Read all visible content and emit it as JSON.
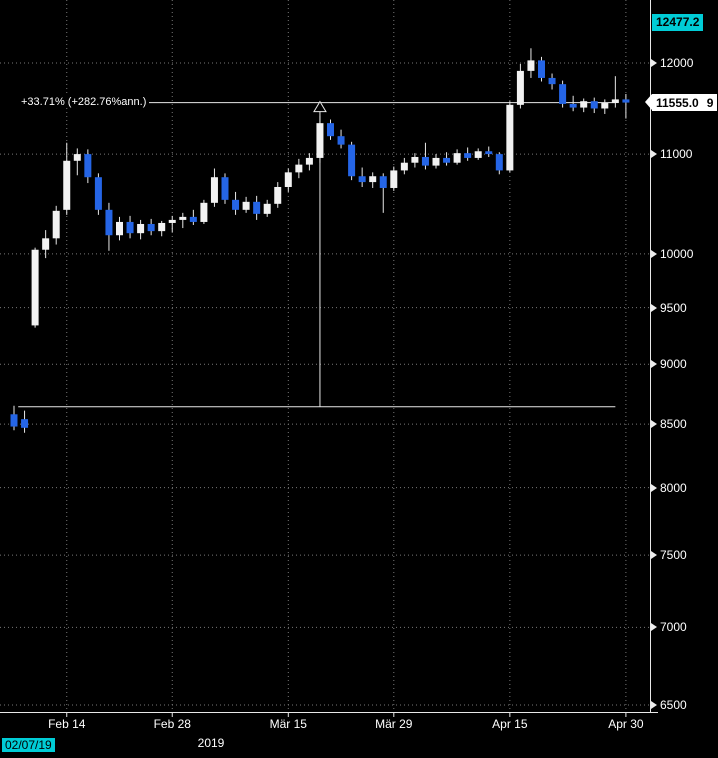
{
  "colors": {
    "background": "#000000",
    "grid": "#787878",
    "axis_line": "#e8e8e8",
    "axis_text": "#ffffff",
    "candle_up": "#f2f2f2",
    "candle_down": "#2565e6",
    "highlight_cyan": "#00ccd6",
    "tag_white": "#ffffff"
  },
  "chart_data": {
    "type": "candlestick",
    "title": "",
    "scale": "log",
    "candle_format": "[open,high,low,close]",
    "y_axis": {
      "side": "right",
      "ticks": [
        12000,
        11000,
        10000,
        9500,
        9000,
        8500,
        8000,
        7500,
        7000,
        6500
      ],
      "high_label": "12477.2",
      "last_price_label": "11555.0",
      "overflow_text": "9"
    },
    "x_axis": {
      "year_label": "2019",
      "start_date": "02/07/19",
      "ticks": [
        {
          "label": "Feb 14",
          "index": 5
        },
        {
          "label": "Feb 28",
          "index": 15
        },
        {
          "label": "Mär 15",
          "index": 26
        },
        {
          "label": "Mär 29",
          "index": 36
        },
        {
          "label": "Apr 15",
          "index": 47
        },
        {
          "label": "Apr 30",
          "index": 58
        }
      ]
    },
    "annotations": {
      "measure": {
        "label": "+33.71% (+282.76%ann.)",
        "upper_price": 11555,
        "lower_price": 8642,
        "vertical_index": 29,
        "x_start_index": 0.4,
        "x_end_index": 57
      }
    },
    "candles": [
      [
        8580,
        8650,
        8450,
        8480
      ],
      [
        8540,
        8610,
        8430,
        8470
      ],
      [
        9340,
        10060,
        9320,
        10040
      ],
      [
        10040,
        10230,
        9960,
        10150
      ],
      [
        10150,
        10470,
        10090,
        10420
      ],
      [
        10430,
        11120,
        10380,
        10930
      ],
      [
        10930,
        11060,
        10780,
        11000
      ],
      [
        11000,
        11050,
        10700,
        10760
      ],
      [
        10760,
        10800,
        10380,
        10430
      ],
      [
        10430,
        10500,
        10030,
        10180
      ],
      [
        10180,
        10360,
        10130,
        10310
      ],
      [
        10310,
        10370,
        10150,
        10200
      ],
      [
        10200,
        10330,
        10140,
        10290
      ],
      [
        10290,
        10340,
        10180,
        10220
      ],
      [
        10220,
        10320,
        10170,
        10300
      ],
      [
        10300,
        10370,
        10210,
        10330
      ],
      [
        10330,
        10400,
        10250,
        10360
      ],
      [
        10360,
        10430,
        10280,
        10310
      ],
      [
        10310,
        10530,
        10290,
        10500
      ],
      [
        10500,
        10850,
        10460,
        10760
      ],
      [
        10760,
        10800,
        10490,
        10530
      ],
      [
        10530,
        10610,
        10380,
        10430
      ],
      [
        10430,
        10560,
        10400,
        10510
      ],
      [
        10510,
        10570,
        10330,
        10390
      ],
      [
        10390,
        10530,
        10360,
        10490
      ],
      [
        10490,
        10710,
        10450,
        10660
      ],
      [
        10660,
        10850,
        10610,
        10810
      ],
      [
        10810,
        10950,
        10750,
        10890
      ],
      [
        10890,
        11010,
        10830,
        10960
      ],
      [
        10960,
        11410,
        10910,
        11330
      ],
      [
        11330,
        11370,
        11150,
        11190
      ],
      [
        11190,
        11260,
        11060,
        11100
      ],
      [
        11100,
        11130,
        10730,
        10770
      ],
      [
        10770,
        10860,
        10660,
        10710
      ],
      [
        10710,
        10810,
        10650,
        10770
      ],
      [
        10770,
        10800,
        10400,
        10650
      ],
      [
        10650,
        10870,
        10620,
        10830
      ],
      [
        10830,
        10960,
        10790,
        10910
      ],
      [
        10910,
        11010,
        10860,
        10970
      ],
      [
        10970,
        11120,
        10840,
        10880
      ],
      [
        10880,
        11000,
        10850,
        10960
      ],
      [
        10960,
        11020,
        10880,
        10910
      ],
      [
        10910,
        11050,
        10890,
        11010
      ],
      [
        11010,
        11070,
        10930,
        10960
      ],
      [
        10960,
        11060,
        10940,
        11030
      ],
      [
        11030,
        11080,
        10970,
        11000
      ],
      [
        11000,
        11020,
        10790,
        10830
      ],
      [
        10830,
        11570,
        10810,
        11530
      ],
      [
        11530,
        11990,
        11490,
        11910
      ],
      [
        11910,
        12170,
        11830,
        12030
      ],
      [
        12030,
        12070,
        11790,
        11830
      ],
      [
        11830,
        11880,
        11700,
        11760
      ],
      [
        11760,
        11800,
        11500,
        11540
      ],
      [
        11540,
        11630,
        11460,
        11500
      ],
      [
        11500,
        11600,
        11450,
        11570
      ],
      [
        11570,
        11610,
        11440,
        11490
      ],
      [
        11490,
        11590,
        11430,
        11550
      ],
      [
        11550,
        11850,
        11500,
        11590
      ],
      [
        11590,
        11650,
        11380,
        11555
      ]
    ]
  }
}
